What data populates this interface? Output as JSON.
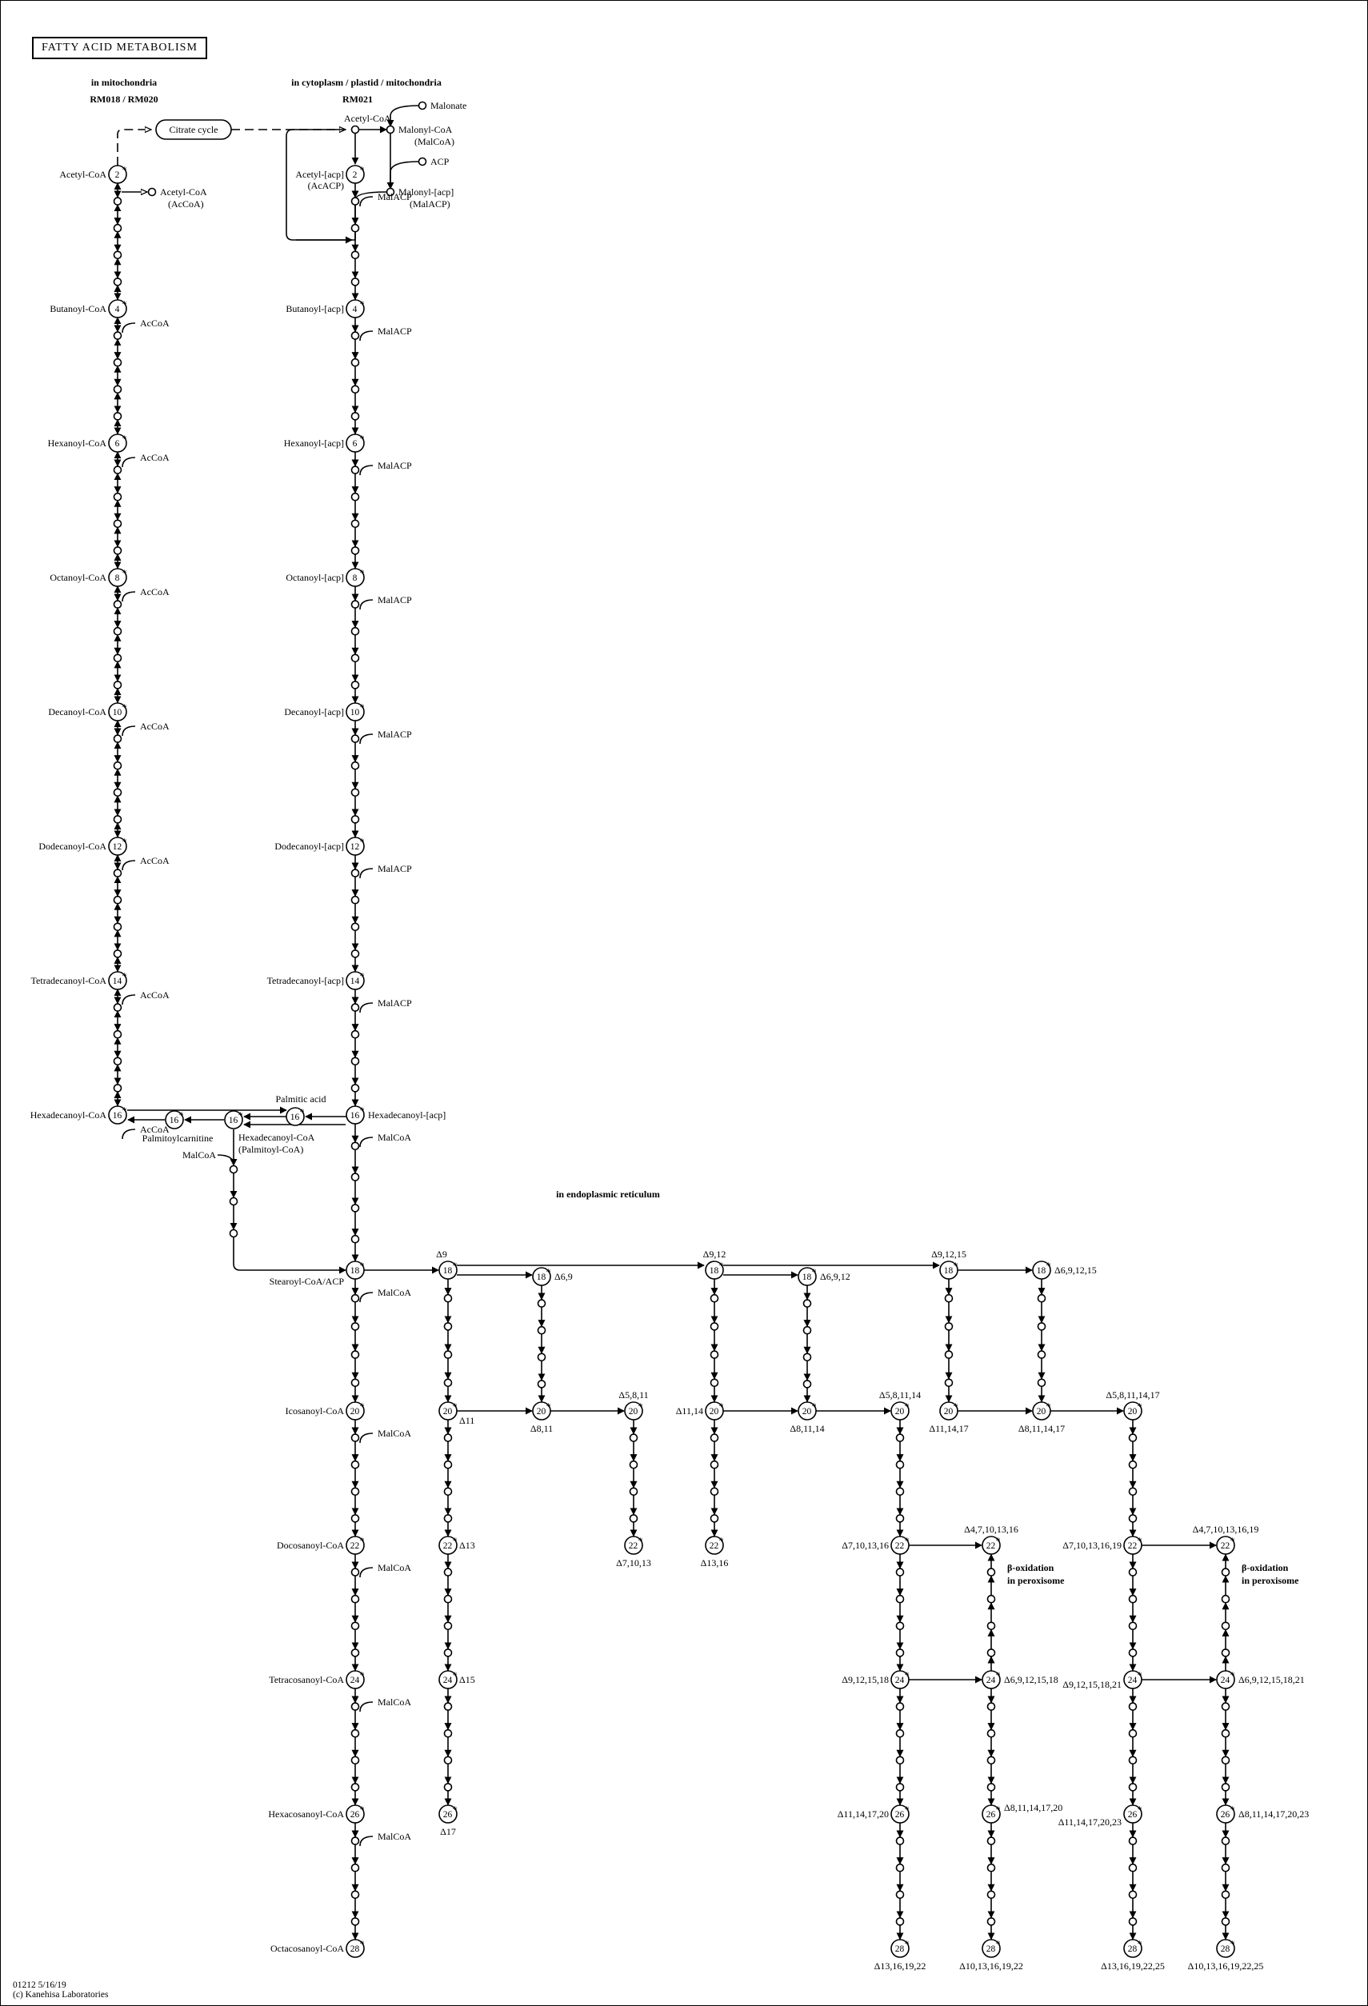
{
  "title": "FATTY ACID METABOLISM",
  "compartments": {
    "mitochondria": "in mitochondria",
    "mitochondria_modules": "RM018 / RM020",
    "cytoplasm": "in cytoplasm / plastid / mitochondria",
    "cytoplasm_module": "RM021",
    "er": "in endoplasmic reticulum"
  },
  "beta_oxidation_label": [
    "β-oxidation",
    "in peroxisome"
  ],
  "citrate_cycle": "Citrate cycle",
  "left_column": {
    "chain_lengths": [
      "2",
      "4",
      "6",
      "8",
      "10",
      "12",
      "14",
      "16"
    ],
    "compounds": [
      "Acetyl-CoA",
      "Butanoyl-CoA",
      "Hexanoyl-CoA",
      "Octanoyl-CoA",
      "Decanoyl-CoA",
      "Dodecanoyl-CoA",
      "Tetradecanoyl-CoA",
      "Hexadecanoyl-CoA"
    ],
    "side_label": "AcCoA",
    "acetyl_side": [
      "Acetyl-CoA",
      "(AcCoA)"
    ]
  },
  "middle_column": {
    "chain_lengths": [
      "2",
      "4",
      "6",
      "8",
      "10",
      "12",
      "14",
      "16",
      "18",
      "20",
      "22",
      "24",
      "26",
      "28"
    ],
    "compounds": [
      "Acetyl-[acp]",
      "Butanoyl-[acp]",
      "Hexanoyl-[acp]",
      "Octanoyl-[acp]",
      "Decanoyl-[acp]",
      "Dodecanoyl-[acp]",
      "Tetradecanoyl-[acp]",
      "Hexadecanoyl-[acp]",
      "Stearoyl-CoA/ACP",
      "Icosanoyl-CoA",
      "Docosanoyl-CoA",
      "Tetracosanoyl-CoA",
      "Hexacosanoyl-CoA",
      "Octacosanoyl-CoA"
    ],
    "acetyl_acp_abbr": "(AcACP)",
    "acp_side_label": "MalACP",
    "coa_side_label": "MalCoA"
  },
  "top": {
    "acetyl_coa": "Acetyl-CoA",
    "malonate": "Malonate",
    "malonyl_coa": [
      "Malonyl-CoA",
      "(MalCoA)"
    ],
    "acp": "ACP",
    "malonyl_acp": [
      "Malonyl-[acp]",
      "(MalACP)"
    ]
  },
  "palmitate": {
    "palmitic_acid": "Palmitic acid",
    "palmitoylcarnitine": "Palmitoylcarnitine",
    "hexadecanoyl_coa": [
      "Hexadecanoyl-CoA",
      "(Palmitoyl-CoA)"
    ],
    "malcoa": "MalCoA",
    "n16": "16",
    "n18": "18"
  },
  "desaturation": {
    "d9": "Δ9",
    "d11": "Δ11",
    "d13": "Δ13",
    "d15": "Δ15",
    "d17": "Δ17",
    "d69": "Δ6,9",
    "d811": "Δ8,11",
    "d5811": "Δ5,8,11",
    "d71013": "Δ7,10,13",
    "d912": "Δ9,12",
    "d1114": "Δ11,14",
    "d1316": "Δ13,16",
    "d6912": "Δ6,9,12",
    "d81114": "Δ8,11,14",
    "d581114": "Δ5,8,11,14",
    "d7101316": "Δ7,10,13,16",
    "d47101316": "Δ4,7,10,13,16",
    "d9121518": "Δ9,12,15,18",
    "d69121518": "Δ6,9,12,15,18",
    "d1114172": "Δ11,14,17,20",
    "d81114172": "Δ8,11,14,17,20",
    "d1316192": "Δ13,16,19,22",
    "d1013161922": "Δ10,13,16,19,22",
    "d91215": "Δ9,12,15",
    "d691215": "Δ6,9,12,15",
    "d111417": "Δ11,14,17",
    "d8111417": "Δ8,11,14,17",
    "d58111417": "Δ5,8,11,14,17",
    "d710131619": "Δ7,10,13,16,19",
    "d4710131619": "Δ4,7,10,13,16,19",
    "d912151821": "Δ9,12,15,18,21",
    "d6912151821": "Δ6,9,12,15,18,21",
    "d1114172023": "Δ11,14,17,20,23",
    "d811141720_23": "Δ8,11,14,17,20,23",
    "d1316192225": "Δ13,16,19,22,25",
    "d101316192225": "Δ10,13,16,19,22,25"
  },
  "credits": [
    "01212 5/16/19",
    "(c) Kanehisa Laboratories"
  ]
}
